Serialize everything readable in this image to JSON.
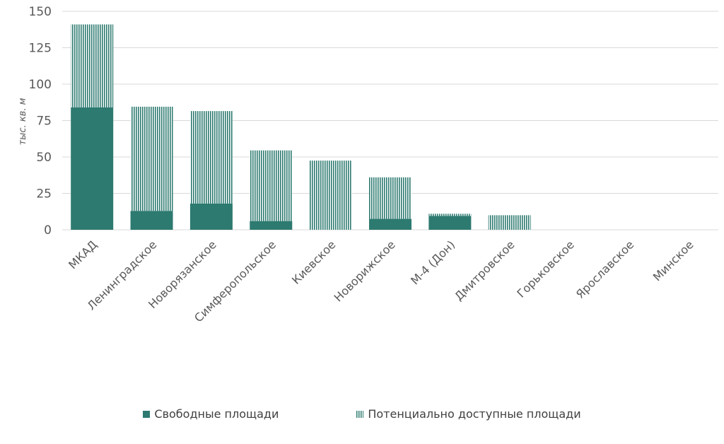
{
  "chart_data": {
    "type": "bar",
    "stacked": true,
    "categories": [
      "МКАД",
      "Ленинградское",
      "Новорязанское",
      "Симферопольское",
      "Киевское",
      "Новорижское",
      "М-4 (Дон)",
      "Дмитровское",
      "Горьковское",
      "Ярославское",
      "Минское"
    ],
    "series": [
      {
        "name": "Свободные площади",
        "values": [
          84,
          13,
          18,
          6,
          0,
          7.5,
          9.5,
          0,
          0,
          0,
          0
        ],
        "color": "#2d7a70",
        "pattern": "solid"
      },
      {
        "name": "Потенциально доступные площади",
        "values": [
          57,
          71.5,
          63.5,
          48.5,
          47.5,
          28.5,
          1.5,
          10,
          0,
          0,
          0
        ],
        "color": "#2d7a70",
        "pattern": "vertical-stripes"
      }
    ],
    "ylabel": "тыс. кв. м",
    "ylim": [
      0,
      150
    ],
    "yticks": [
      0,
      25,
      50,
      75,
      100,
      125,
      150
    ],
    "grid": true,
    "legend_position": "bottom"
  }
}
